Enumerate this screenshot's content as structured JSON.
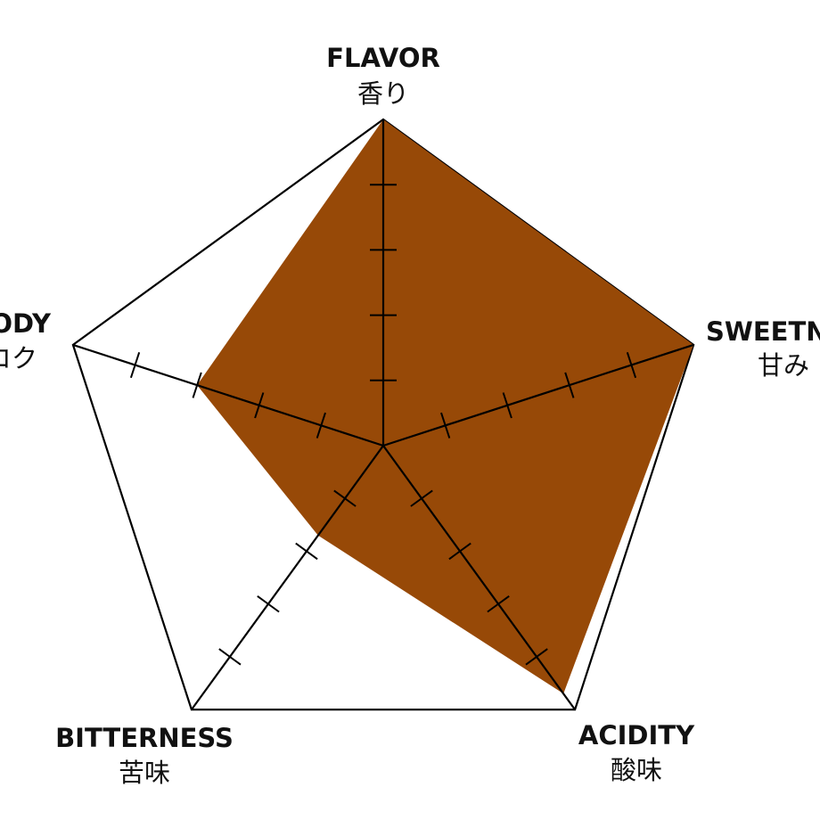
{
  "chart_data": {
    "type": "radar",
    "title": "",
    "rmax": 5,
    "tick_step": 1,
    "axes": [
      {
        "en": "FLAVOR",
        "ja": "香り"
      },
      {
        "en": "SWEETNESS",
        "ja": "甘み"
      },
      {
        "en": "ACIDITY",
        "ja": "酸味"
      },
      {
        "en": "BITTERNESS",
        "ja": "苦味"
      },
      {
        "en": "BODY",
        "ja": "コク"
      }
    ],
    "series": [
      {
        "values": [
          5,
          5,
          4.7,
          1.7,
          3
        ]
      }
    ],
    "colors": {
      "fill": "#974907",
      "stroke": "#000000"
    }
  }
}
